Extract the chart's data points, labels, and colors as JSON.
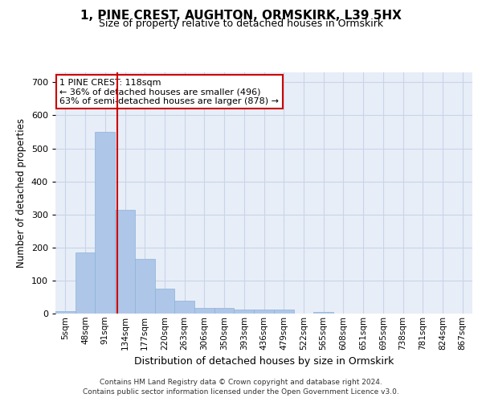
{
  "title": "1, PINE CREST, AUGHTON, ORMSKIRK, L39 5HX",
  "subtitle": "Size of property relative to detached houses in Ormskirk",
  "xlabel": "Distribution of detached houses by size in Ormskirk",
  "ylabel": "Number of detached properties",
  "bin_labels": [
    "5sqm",
    "48sqm",
    "91sqm",
    "134sqm",
    "177sqm",
    "220sqm",
    "263sqm",
    "306sqm",
    "350sqm",
    "393sqm",
    "436sqm",
    "479sqm",
    "522sqm",
    "565sqm",
    "608sqm",
    "651sqm",
    "695sqm",
    "738sqm",
    "781sqm",
    "824sqm",
    "867sqm"
  ],
  "bar_heights": [
    8,
    185,
    550,
    315,
    165,
    75,
    38,
    18,
    18,
    12,
    12,
    12,
    0,
    6,
    0,
    0,
    0,
    0,
    0,
    0,
    0
  ],
  "bar_color": "#aec6e8",
  "bar_edge_color": "#8ab4d8",
  "grid_color": "#c8d4e8",
  "bg_color": "#e8eef8",
  "red_line_color": "#cc0000",
  "annotation_text": "1 PINE CREST: 118sqm\n← 36% of detached houses are smaller (496)\n63% of semi-detached houses are larger (878) →",
  "annotation_box_color": "#ffffff",
  "annotation_box_edge": "#cc0000",
  "ylim": [
    0,
    730
  ],
  "yticks": [
    0,
    100,
    200,
    300,
    400,
    500,
    600,
    700
  ],
  "footer_line1": "Contains HM Land Registry data © Crown copyright and database right 2024.",
  "footer_line2": "Contains public sector information licensed under the Open Government Licence v3.0."
}
